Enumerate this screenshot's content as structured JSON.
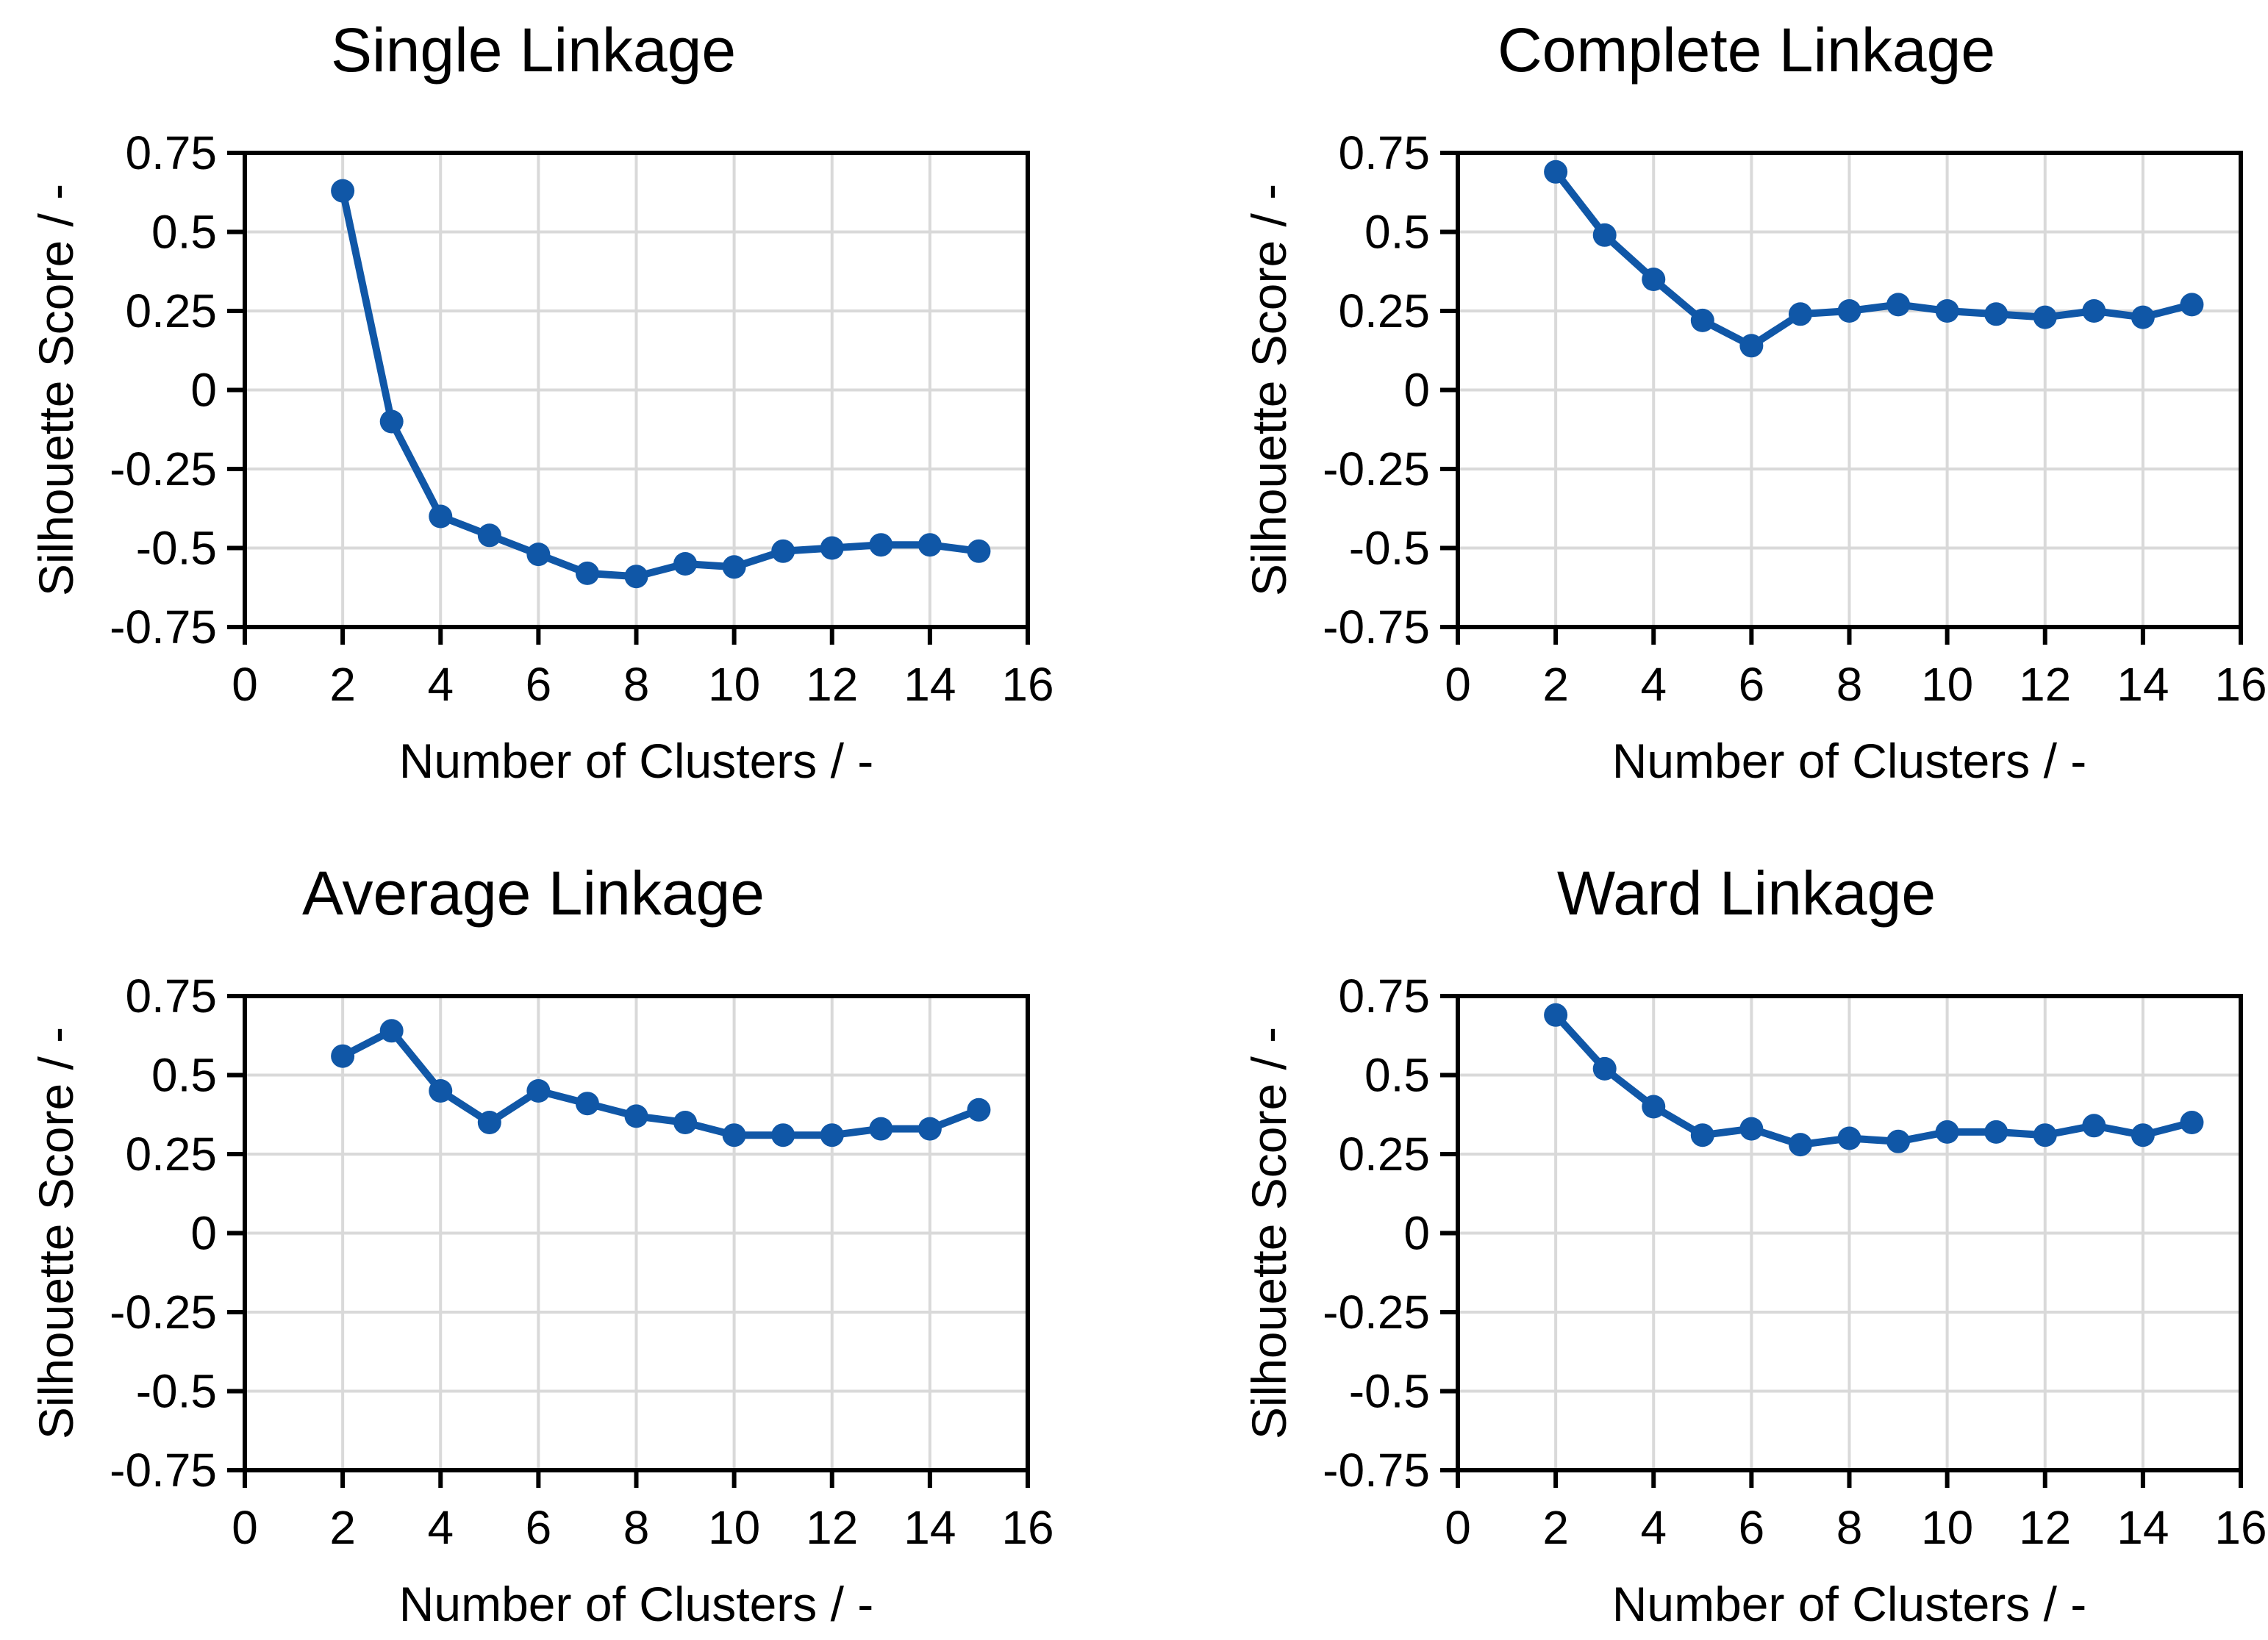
{
  "page": {
    "background": "#FFFFFF",
    "description_texts": {
      "y_axis_title": "Silhouette Score / -",
      "x_axis_title": "Number of Clusters / -"
    }
  },
  "styles": {
    "line_color": "#1057A7",
    "grid_color": "#D9D9D9",
    "axis_color": "#000000",
    "text_color": "#000000"
  },
  "chart_data": [
    {
      "type": "line",
      "title": "Single Linkage",
      "xlabel": "Number of Clusters / -",
      "ylabel": "Silhouette Score / -",
      "x": [
        2,
        3,
        4,
        5,
        6,
        7,
        8,
        9,
        10,
        11,
        12,
        13,
        14,
        15
      ],
      "values": [
        0.63,
        -0.1,
        -0.4,
        -0.46,
        -0.52,
        -0.58,
        -0.59,
        -0.55,
        -0.56,
        -0.51,
        -0.5,
        -0.49,
        -0.49,
        -0.51
      ],
      "xlim": [
        0,
        16
      ],
      "ylim": [
        -0.75,
        0.75
      ],
      "xticks": [
        0,
        2,
        4,
        6,
        8,
        10,
        12,
        14,
        16
      ],
      "yticks": [
        0.75,
        0.5,
        0.25,
        0,
        -0.25,
        -0.5,
        -0.75
      ],
      "ytick_labels": [
        "0.75",
        "0.5",
        "0.25",
        "0",
        "-0.25",
        "-0.5",
        "-0.75"
      ],
      "grid": true,
      "legend": null,
      "marker": "circle"
    },
    {
      "type": "line",
      "title": "Complete Linkage",
      "xlabel": "Number of Clusters / -",
      "ylabel": "Silhouette Score / -",
      "x": [
        2,
        3,
        4,
        5,
        6,
        7,
        8,
        9,
        10,
        11,
        12,
        13,
        14,
        15
      ],
      "values": [
        0.69,
        0.49,
        0.35,
        0.22,
        0.14,
        0.24,
        0.25,
        0.27,
        0.25,
        0.24,
        0.23,
        0.25,
        0.23,
        0.27
      ],
      "xlim": [
        0,
        16
      ],
      "ylim": [
        -0.75,
        0.75
      ],
      "xticks": [
        0,
        2,
        4,
        6,
        8,
        10,
        12,
        14,
        16
      ],
      "yticks": [
        0.75,
        0.5,
        0.25,
        0,
        -0.25,
        -0.5,
        -0.75
      ],
      "ytick_labels": [
        "0.75",
        "0.5",
        "0.25",
        "0",
        "-0.25",
        "-0.5",
        "-0.75"
      ],
      "grid": true,
      "legend": null,
      "marker": "circle"
    },
    {
      "type": "line",
      "title": "Average Linkage",
      "xlabel": "Number of Clusters / -",
      "ylabel": "Silhouette Score / -",
      "x": [
        2,
        3,
        4,
        5,
        6,
        7,
        8,
        9,
        10,
        11,
        12,
        13,
        14,
        15
      ],
      "values": [
        0.56,
        0.64,
        0.45,
        0.35,
        0.45,
        0.41,
        0.37,
        0.35,
        0.31,
        0.31,
        0.31,
        0.33,
        0.33,
        0.39
      ],
      "xlim": [
        0,
        16
      ],
      "ylim": [
        -0.75,
        0.75
      ],
      "xticks": [
        0,
        2,
        4,
        6,
        8,
        10,
        12,
        14,
        16
      ],
      "yticks": [
        0.75,
        0.5,
        0.25,
        0,
        -0.25,
        -0.5,
        -0.75
      ],
      "ytick_labels": [
        "0.75",
        "0.5",
        "0.25",
        "0",
        "-0.25",
        "-0.5",
        "-0.75"
      ],
      "grid": true,
      "legend": null,
      "marker": "circle"
    },
    {
      "type": "line",
      "title": "Ward Linkage",
      "xlabel": "Number of Clusters / -",
      "ylabel": "Silhouette Score / -",
      "x": [
        2,
        3,
        4,
        5,
        6,
        7,
        8,
        9,
        10,
        11,
        12,
        13,
        14,
        15
      ],
      "values": [
        0.69,
        0.52,
        0.4,
        0.31,
        0.33,
        0.28,
        0.3,
        0.29,
        0.32,
        0.32,
        0.31,
        0.34,
        0.31,
        0.35
      ],
      "xlim": [
        0,
        16
      ],
      "ylim": [
        -0.75,
        0.75
      ],
      "xticks": [
        0,
        2,
        4,
        6,
        8,
        10,
        12,
        14,
        16
      ],
      "yticks": [
        0.75,
        0.5,
        0.25,
        0,
        -0.25,
        -0.5,
        -0.75
      ],
      "ytick_labels": [
        "0.75",
        "0.5",
        "0.25",
        "0",
        "-0.25",
        "-0.5",
        "-0.75"
      ],
      "grid": true,
      "legend": null,
      "marker": "circle"
    }
  ]
}
